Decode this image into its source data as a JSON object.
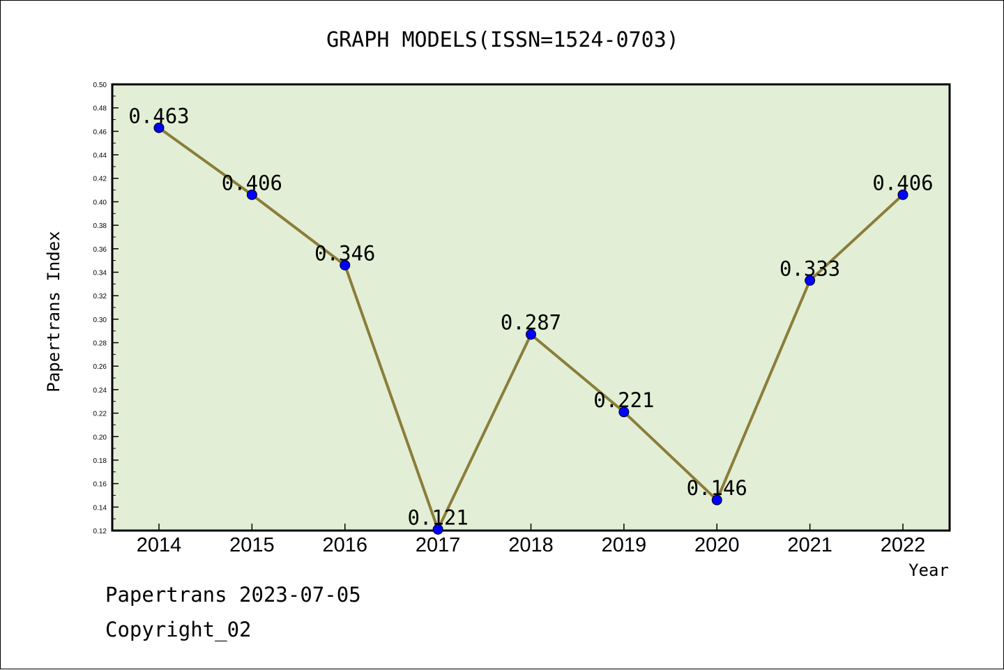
{
  "chart_data": {
    "type": "line",
    "title": "GRAPH MODELS(ISSN=1524-0703)",
    "xlabel": "Year",
    "ylabel": "Papertrans Index",
    "categories": [
      "2014",
      "2015",
      "2016",
      "2017",
      "2018",
      "2019",
      "2020",
      "2021",
      "2022"
    ],
    "series": [
      {
        "values": [
          0.463,
          0.406,
          0.346,
          0.121,
          0.287,
          0.221,
          0.146,
          0.333,
          0.406
        ],
        "labels": [
          "0.463",
          "0.406",
          "0.346",
          "0.121",
          "0.287",
          "0.221",
          "0.146",
          "0.333",
          "0.406"
        ]
      }
    ],
    "ylim": [
      0.12,
      0.5
    ],
    "yticks": [
      "0.12",
      "0.14",
      "0.16",
      "0.18",
      "0.20",
      "0.22",
      "0.24",
      "0.26",
      "0.28",
      "0.30",
      "0.32",
      "0.34",
      "0.36",
      "0.38",
      "0.40",
      "0.42",
      "0.44",
      "0.46",
      "0.48",
      "0.50"
    ],
    "grid": false,
    "colors": {
      "plot_background": "#e2efd6",
      "line": "#8b7d3a",
      "marker": "#0000ff"
    }
  },
  "footer": {
    "line1": "Papertrans 2023-07-05",
    "line2": "Copyright_02"
  }
}
